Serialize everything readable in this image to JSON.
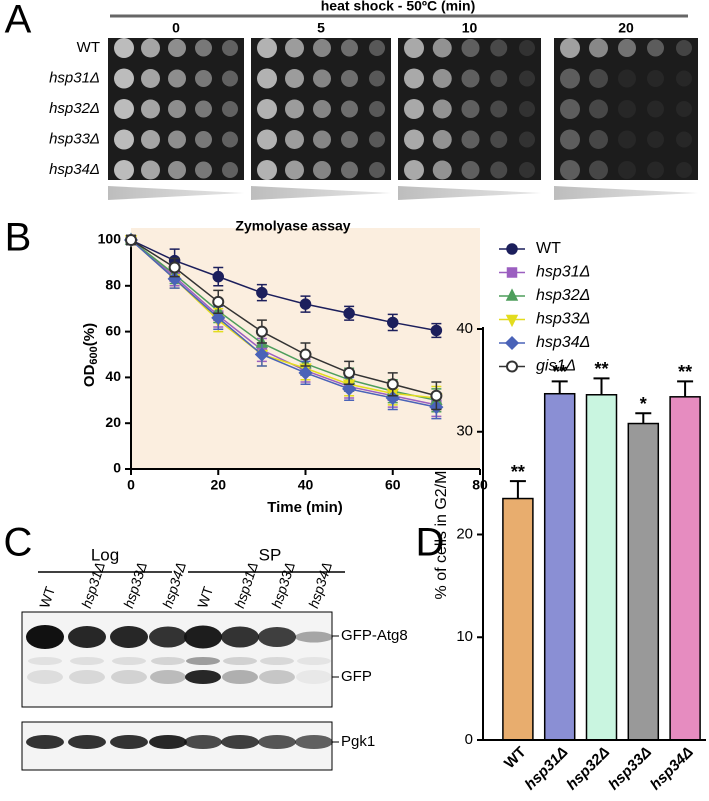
{
  "panel_labels": [
    "A",
    "B",
    "C",
    "D"
  ],
  "spot_assay": {
    "title": "heat shock - 50ºC (min)",
    "times": [
      "0",
      "5",
      "10",
      "20"
    ],
    "strains": [
      "WT",
      "hsp31Δ",
      "hsp32Δ",
      "hsp33Δ",
      "hsp34Δ"
    ]
  },
  "western_blot": {
    "groups": [
      "Log",
      "SP"
    ],
    "lanes": [
      "WT",
      "hsp31Δ",
      "hsp33Δ",
      "hsp34Δ",
      "WT",
      "hsp31Δ",
      "hsp33Δ",
      "hsp34Δ"
    ],
    "bands": [
      "GFP-Atg8",
      "GFP",
      "Pgk1"
    ]
  },
  "chart_data": [
    {
      "type": "line",
      "title": "Zymolyase assay",
      "x_label": "Time (min)",
      "y_label": {
        "text": "OD",
        "subscript": "600",
        "suffix": "(%)"
      },
      "x": [
        0,
        10,
        20,
        30,
        40,
        50,
        60,
        70
      ],
      "xlim": [
        0,
        80
      ],
      "xticks": [
        0,
        20,
        40,
        60,
        80
      ],
      "ylim": [
        0,
        100
      ],
      "yticks": [
        0,
        20,
        40,
        60,
        80,
        100
      ],
      "series": [
        {
          "name": "WT",
          "color": "#1c1f5c",
          "marker": "circle",
          "values": [
            100,
            91,
            84,
            77,
            72,
            68,
            64,
            60.5
          ],
          "errors": [
            2,
            5,
            4,
            3.5,
            3.5,
            3,
            3.5,
            3
          ]
        },
        {
          "name": "hsp31Δ",
          "color": "#9b5fc0",
          "marker": "square",
          "values": [
            100,
            84,
            67,
            52,
            43,
            36,
            32,
            28
          ],
          "errors": [
            2,
            4,
            5,
            5,
            5,
            5,
            5,
            5
          ]
        },
        {
          "name": "hsp32Δ",
          "color": "#4e9e5c",
          "marker": "triangle",
          "values": [
            100,
            85,
            69,
            55,
            46,
            39,
            34,
            30
          ],
          "errors": [
            2,
            4,
            5,
            5,
            5,
            5,
            5,
            5
          ]
        },
        {
          "name": "hsp33Δ",
          "color": "#e3dc1e",
          "marker": "triangle-down",
          "values": [
            100,
            83,
            65,
            50,
            44,
            37,
            33,
            31
          ],
          "errors": [
            2,
            4,
            5,
            5,
            5,
            5,
            5,
            5
          ]
        },
        {
          "name": "hsp34Δ",
          "color": "#4a63b8",
          "marker": "diamond",
          "values": [
            100,
            83,
            66,
            50,
            42,
            35,
            31,
            27
          ],
          "errors": [
            2,
            4,
            5,
            5,
            5,
            5,
            5,
            5
          ]
        },
        {
          "name": "gis1Δ",
          "color": "#333333",
          "marker": "open-circle",
          "values": [
            100,
            88,
            73,
            60,
            50,
            42,
            37,
            32
          ],
          "errors": [
            2,
            4,
            5,
            5,
            5,
            5,
            5,
            6
          ]
        }
      ]
    },
    {
      "type": "bar",
      "y_label": "% of cells in G2/M",
      "categories": [
        "WT",
        "hsp31Δ",
        "hsp32Δ",
        "hsp33Δ",
        "hsp34Δ"
      ],
      "values": [
        23.5,
        33.7,
        33.6,
        30.8,
        33.4
      ],
      "errors": [
        1.7,
        1.2,
        1.6,
        1.0,
        1.5
      ],
      "colors": [
        "#e8ad6e",
        "#8a8fd4",
        "#c9f5e0",
        "#999999",
        "#e68cc0"
      ],
      "annotations": [
        "**",
        "**",
        "**",
        "*",
        "**"
      ],
      "ylim": [
        0,
        40
      ],
      "yticks": [
        0,
        10,
        20,
        30,
        40
      ]
    }
  ]
}
